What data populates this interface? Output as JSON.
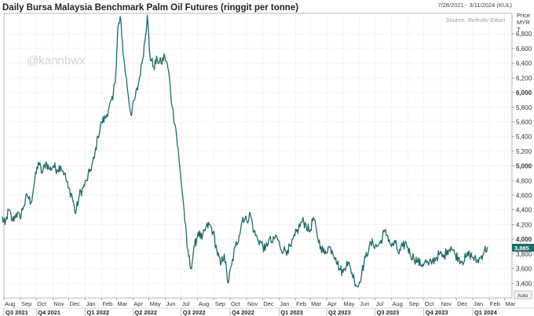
{
  "chart_data": {
    "type": "line",
    "title": "Daily Bursa Malaysia Benchmark Palm Oil Futures (ringgit per tonne)",
    "date_range": "7/28/2021 - 3/11/2024 (KUL)",
    "source": "Source: Refinitiv Eikon",
    "watermark": "@kannbwx",
    "y_axis_header": [
      "Price",
      "MYR",
      "T"
    ],
    "current_value": 3885,
    "current_label": "3,885",
    "auto_label": "Auto",
    "ylim": [
      3200,
      7080
    ],
    "yticks": [
      {
        "value": 3400,
        "label": "3,400"
      },
      {
        "value": 3600,
        "label": "3,600"
      },
      {
        "value": 3800,
        "label": "3,800"
      },
      {
        "value": 4000,
        "label": "4,000",
        "bold": true
      },
      {
        "value": 4200,
        "label": "4,200"
      },
      {
        "value": 4400,
        "label": "4,400"
      },
      {
        "value": 4600,
        "label": "4,600"
      },
      {
        "value": 4800,
        "label": "4,800"
      },
      {
        "value": 5000,
        "label": "5,000",
        "bold": true
      },
      {
        "value": 5200,
        "label": "5,200"
      },
      {
        "value": 5400,
        "label": "5,400"
      },
      {
        "value": 5600,
        "label": "5,600"
      },
      {
        "value": 5800,
        "label": "5,800"
      },
      {
        "value": 6000,
        "label": "6,000",
        "bold": true
      },
      {
        "value": 6200,
        "label": "6,200"
      },
      {
        "value": 6400,
        "label": "6,400"
      },
      {
        "value": 6600,
        "label": "6,600"
      },
      {
        "value": 6800,
        "label": "6,800"
      }
    ],
    "x_months": [
      "Aug",
      "Sep",
      "Oct",
      "Nov",
      "Dec",
      "Jan",
      "Feb",
      "Mar",
      "Apr",
      "May",
      "Jun",
      "Jul",
      "Aug",
      "Sep",
      "Oct",
      "Nov",
      "Dec",
      "Jan",
      "Feb",
      "Mar",
      "Apr",
      "May",
      "Jun",
      "Jul",
      "Aug",
      "Sep",
      "Oct",
      "Nov",
      "Dec",
      "Jan",
      "Feb",
      "Mar"
    ],
    "x_quarters": [
      {
        "label": "Q3 2021",
        "month_index": 0
      },
      {
        "label": "Q4 2021",
        "month_index": 2
      },
      {
        "label": "Q1 2022",
        "month_index": 5
      },
      {
        "label": "Q2 2022",
        "month_index": 8
      },
      {
        "label": "Q3 2022",
        "month_index": 11
      },
      {
        "label": "Q4 2022",
        "month_index": 14
      },
      {
        "label": "Q1 2023",
        "month_index": 17
      },
      {
        "label": "Q2 2023",
        "month_index": 20
      },
      {
        "label": "Q3 2023",
        "month_index": 23
      },
      {
        "label": "Q4 2023",
        "month_index": 26
      },
      {
        "label": "Q1 2024",
        "month_index": 29
      }
    ],
    "series": [
      {
        "color": "#1e6b6b",
        "points": [
          [
            "2021-07-28",
            4300
          ],
          [
            "2021-08-03",
            4200
          ],
          [
            "2021-08-10",
            4400
          ],
          [
            "2021-08-17",
            4250
          ],
          [
            "2021-08-24",
            4350
          ],
          [
            "2021-08-31",
            4300
          ],
          [
            "2021-09-07",
            4450
          ],
          [
            "2021-09-14",
            4600
          ],
          [
            "2021-09-21",
            4500
          ],
          [
            "2021-09-28",
            4800
          ],
          [
            "2021-10-05",
            5050
          ],
          [
            "2021-10-12",
            4900
          ],
          [
            "2021-10-19",
            5050
          ],
          [
            "2021-10-26",
            4950
          ],
          [
            "2021-11-02",
            5000
          ],
          [
            "2021-11-09",
            4950
          ],
          [
            "2021-11-16",
            5000
          ],
          [
            "2021-11-23",
            4900
          ],
          [
            "2021-11-30",
            4700
          ],
          [
            "2021-12-07",
            4600
          ],
          [
            "2021-12-14",
            4350
          ],
          [
            "2021-12-21",
            4600
          ],
          [
            "2021-12-28",
            4700
          ],
          [
            "2022-01-04",
            4800
          ],
          [
            "2022-01-11",
            4950
          ],
          [
            "2022-01-18",
            5100
          ],
          [
            "2022-01-25",
            5400
          ],
          [
            "2022-02-01",
            5600
          ],
          [
            "2022-02-08",
            5650
          ],
          [
            "2022-02-15",
            5800
          ],
          [
            "2022-02-22",
            5900
          ],
          [
            "2022-02-28",
            6300
          ],
          [
            "2022-03-04",
            6900
          ],
          [
            "2022-03-09",
            7000
          ],
          [
            "2022-03-14",
            6500
          ],
          [
            "2022-03-21",
            6100
          ],
          [
            "2022-03-28",
            5700
          ],
          [
            "2022-04-04",
            5900
          ],
          [
            "2022-04-11",
            6100
          ],
          [
            "2022-04-18",
            6400
          ],
          [
            "2022-04-25",
            6800
          ],
          [
            "2022-04-28",
            7050
          ],
          [
            "2022-05-03",
            6500
          ],
          [
            "2022-05-10",
            6350
          ],
          [
            "2022-05-17",
            6450
          ],
          [
            "2022-05-24",
            6400
          ],
          [
            "2022-05-31",
            6500
          ],
          [
            "2022-06-07",
            6300
          ],
          [
            "2022-06-14",
            5800
          ],
          [
            "2022-06-21",
            5500
          ],
          [
            "2022-06-28",
            5000
          ],
          [
            "2022-07-05",
            4500
          ],
          [
            "2022-07-12",
            3900
          ],
          [
            "2022-07-19",
            3600
          ],
          [
            "2022-07-26",
            3900
          ],
          [
            "2022-08-02",
            4100
          ],
          [
            "2022-08-09",
            4000
          ],
          [
            "2022-08-16",
            4150
          ],
          [
            "2022-08-23",
            4200
          ],
          [
            "2022-08-30",
            4100
          ],
          [
            "2022-09-06",
            3850
          ],
          [
            "2022-09-13",
            3650
          ],
          [
            "2022-09-20",
            3800
          ],
          [
            "2022-09-27",
            3400
          ],
          [
            "2022-10-04",
            3650
          ],
          [
            "2022-10-11",
            3900
          ],
          [
            "2022-10-18",
            4050
          ],
          [
            "2022-10-25",
            4300
          ],
          [
            "2022-11-01",
            4250
          ],
          [
            "2022-11-08",
            4350
          ],
          [
            "2022-11-15",
            4100
          ],
          [
            "2022-11-22",
            4000
          ],
          [
            "2022-11-29",
            3950
          ],
          [
            "2022-12-06",
            3850
          ],
          [
            "2022-12-13",
            4000
          ],
          [
            "2022-12-20",
            3950
          ],
          [
            "2022-12-27",
            4050
          ],
          [
            "2023-01-03",
            3900
          ],
          [
            "2023-01-10",
            3850
          ],
          [
            "2023-01-17",
            3850
          ],
          [
            "2023-01-24",
            3900
          ],
          [
            "2023-01-31",
            4050
          ],
          [
            "2023-02-07",
            4150
          ],
          [
            "2023-02-14",
            4250
          ],
          [
            "2023-02-21",
            4200
          ],
          [
            "2023-02-28",
            4100
          ],
          [
            "2023-03-07",
            4300
          ],
          [
            "2023-03-14",
            4050
          ],
          [
            "2023-03-21",
            3900
          ],
          [
            "2023-03-28",
            3800
          ],
          [
            "2023-04-04",
            3900
          ],
          [
            "2023-04-11",
            3850
          ],
          [
            "2023-04-18",
            3750
          ],
          [
            "2023-04-25",
            3600
          ],
          [
            "2023-05-02",
            3550
          ],
          [
            "2023-05-09",
            3700
          ],
          [
            "2023-05-16",
            3600
          ],
          [
            "2023-05-23",
            3450
          ],
          [
            "2023-05-30",
            3350
          ],
          [
            "2023-06-06",
            3550
          ],
          [
            "2023-06-13",
            3750
          ],
          [
            "2023-06-20",
            3900
          ],
          [
            "2023-06-27",
            3950
          ],
          [
            "2023-07-04",
            3900
          ],
          [
            "2023-07-11",
            3950
          ],
          [
            "2023-07-18",
            4100
          ],
          [
            "2023-07-25",
            4050
          ],
          [
            "2023-08-01",
            3900
          ],
          [
            "2023-08-08",
            3950
          ],
          [
            "2023-08-15",
            3800
          ],
          [
            "2023-08-22",
            3900
          ],
          [
            "2023-08-29",
            3950
          ],
          [
            "2023-09-05",
            3800
          ],
          [
            "2023-09-12",
            3750
          ],
          [
            "2023-09-19",
            3700
          ],
          [
            "2023-09-26",
            3650
          ],
          [
            "2023-10-03",
            3700
          ],
          [
            "2023-10-10",
            3650
          ],
          [
            "2023-10-17",
            3700
          ],
          [
            "2023-10-24",
            3750
          ],
          [
            "2023-10-31",
            3800
          ],
          [
            "2023-11-07",
            3750
          ],
          [
            "2023-11-14",
            3850
          ],
          [
            "2023-11-21",
            3900
          ],
          [
            "2023-11-28",
            3800
          ],
          [
            "2023-12-05",
            3750
          ],
          [
            "2023-12-12",
            3700
          ],
          [
            "2023-12-19",
            3750
          ],
          [
            "2023-12-26",
            3800
          ],
          [
            "2024-01-02",
            3750
          ],
          [
            "2024-01-09",
            3700
          ],
          [
            "2024-01-16",
            3750
          ],
          [
            "2024-01-23",
            3850
          ],
          [
            "2024-01-30",
            3885
          ]
        ]
      }
    ]
  }
}
